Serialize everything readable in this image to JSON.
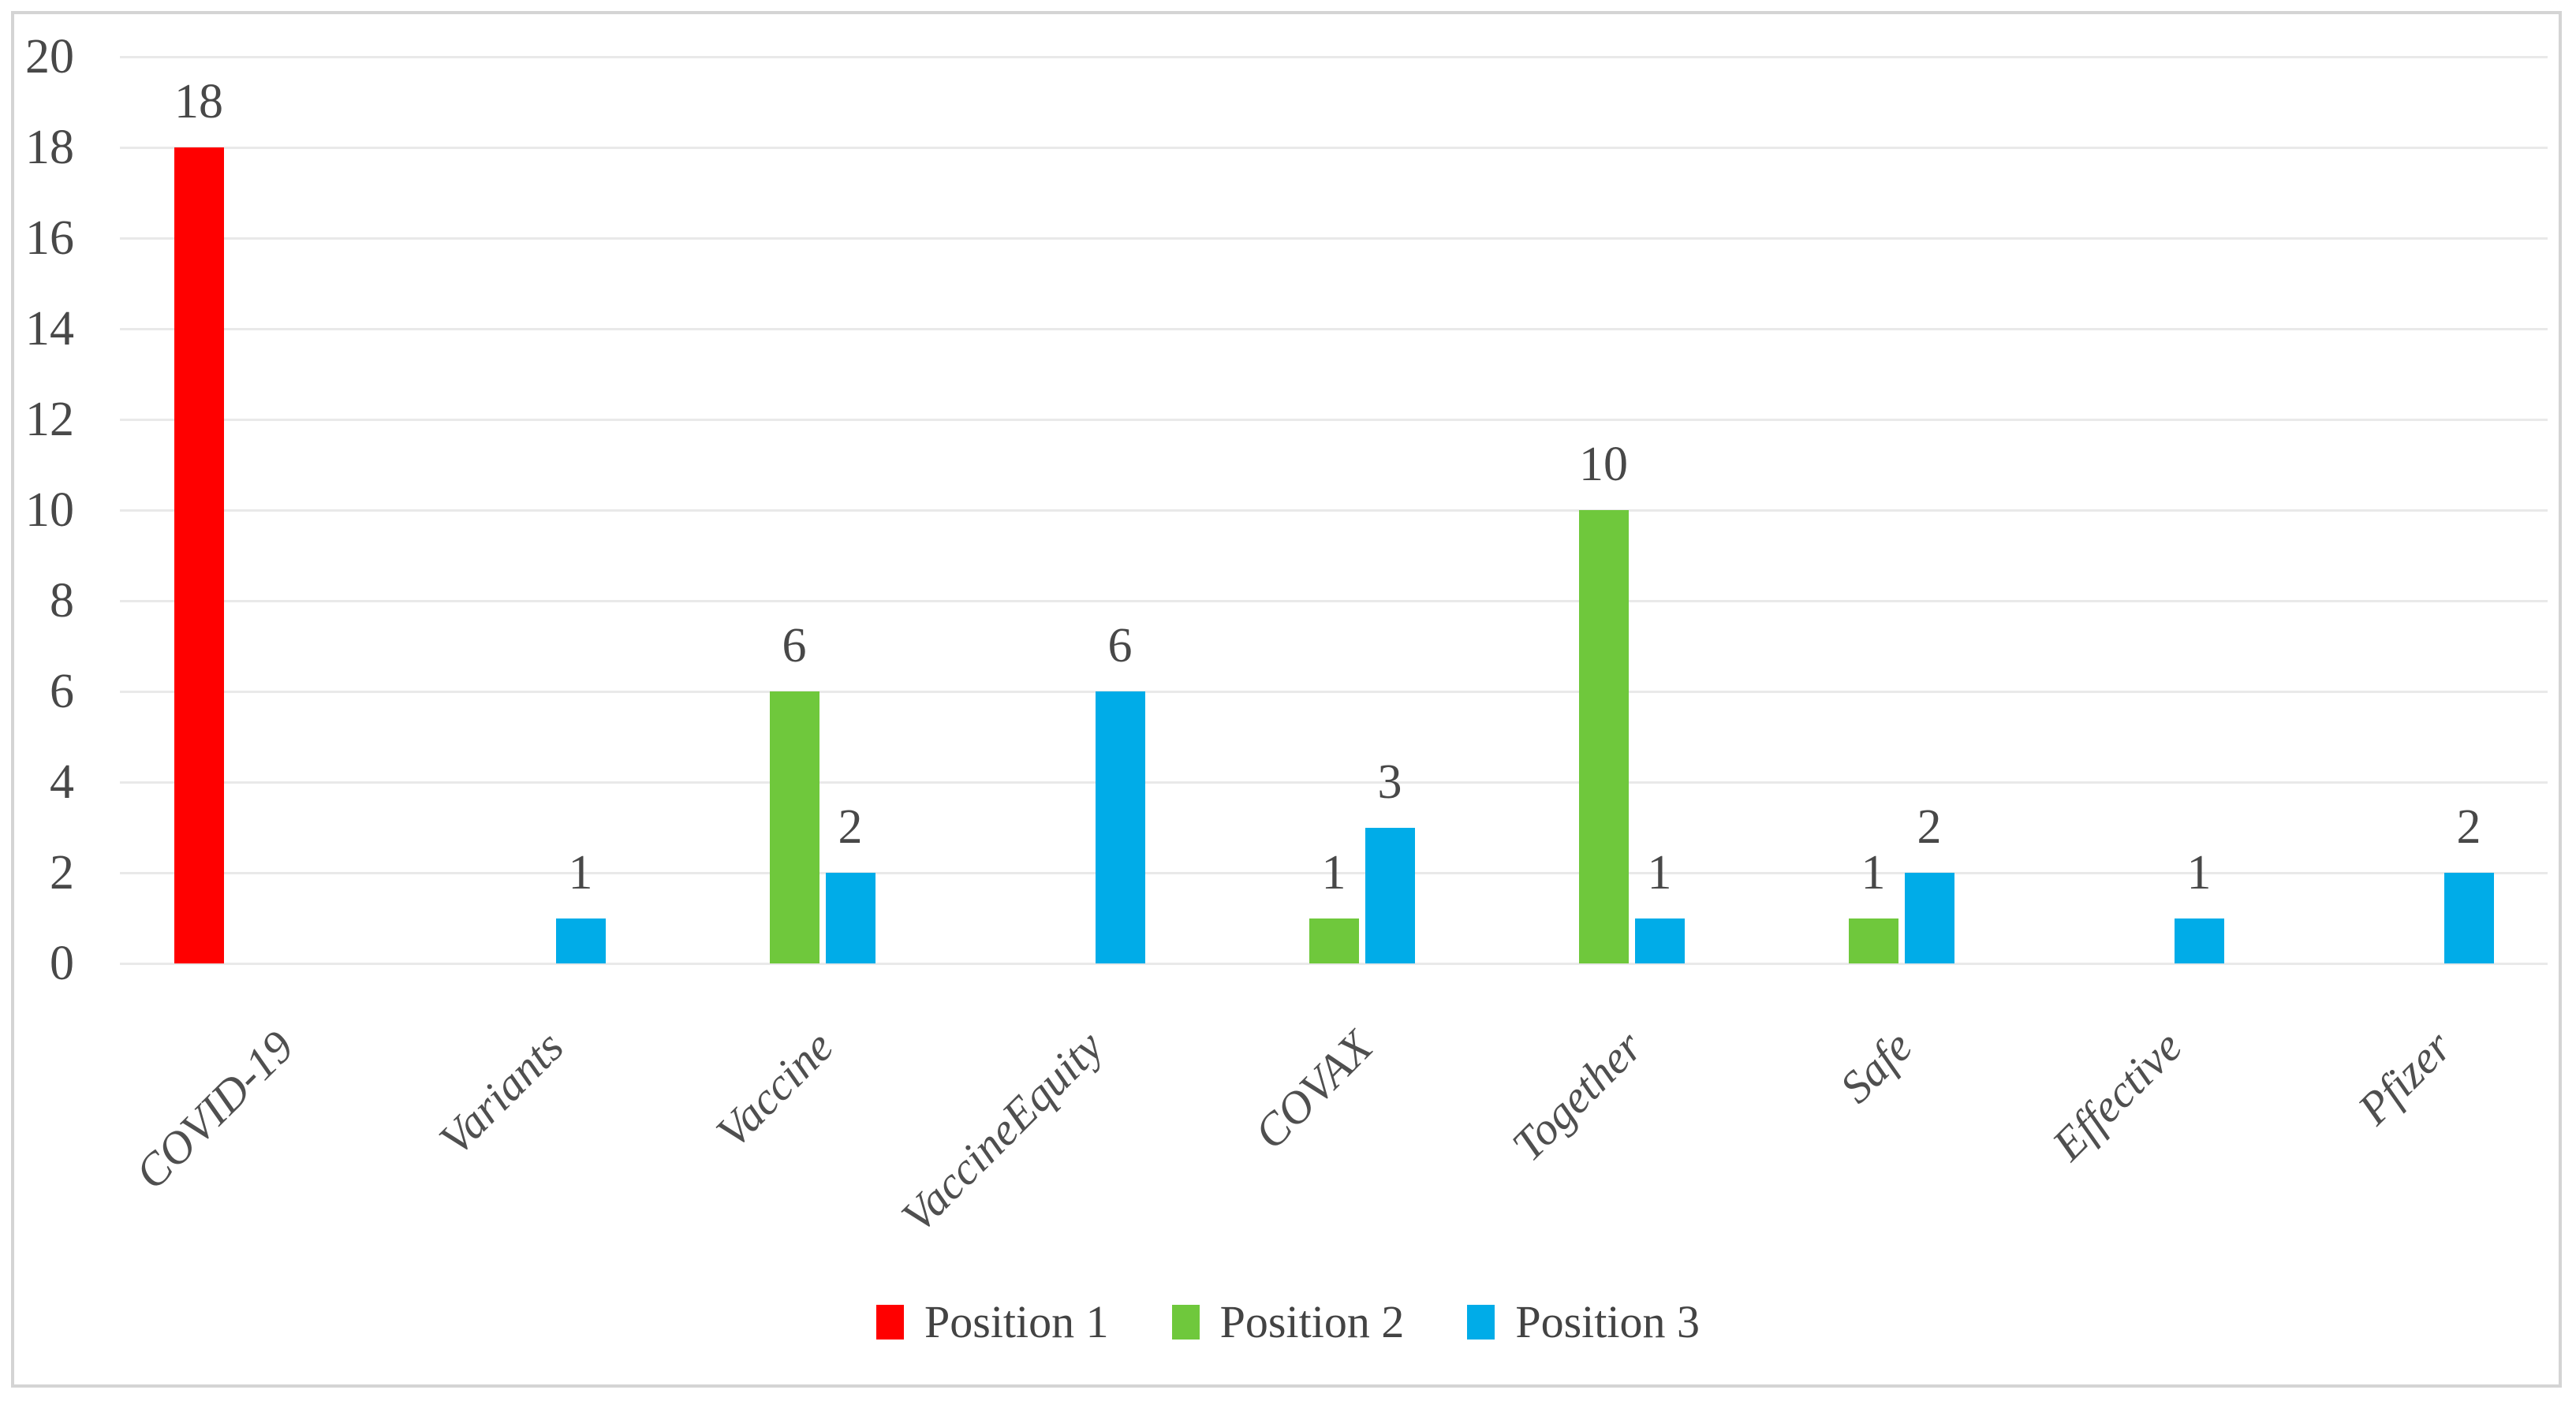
{
  "figure": {
    "kind": "clustered-bar-chart-figure"
  },
  "chart_data": {
    "type": "bar",
    "title": "",
    "xlabel": "",
    "ylabel": "",
    "categories": [
      "COVID-19",
      "Variants",
      "Vaccine",
      "VaccineEquity",
      "COVAX",
      "Together",
      "Safe",
      "Effective",
      "Pfizer"
    ],
    "series": [
      {
        "name": "Position 1",
        "color": "#FF0000",
        "values": [
          18,
          null,
          null,
          null,
          null,
          null,
          null,
          null,
          null
        ]
      },
      {
        "name": "Position 2",
        "color": "#6FC83C",
        "values": [
          null,
          null,
          6,
          null,
          1,
          10,
          1,
          null,
          null
        ]
      },
      {
        "name": "Position 3",
        "color": "#00ACE8",
        "values": [
          null,
          1,
          2,
          6,
          3,
          1,
          2,
          1,
          2
        ]
      }
    ],
    "ylim": [
      0,
      20
    ],
    "ytick_step": 2,
    "yticks": [
      0,
      2,
      4,
      6,
      8,
      10,
      12,
      14,
      16,
      18,
      20
    ],
    "grid": true,
    "data_labels": true,
    "legend_position": "bottom-center",
    "colors": {
      "grid_line": "#e9e9e9",
      "frame_border": "#d4d4d4",
      "axis_text": "#484848",
      "category_text": "#4f4f4f",
      "legend_text": "#434343"
    }
  }
}
